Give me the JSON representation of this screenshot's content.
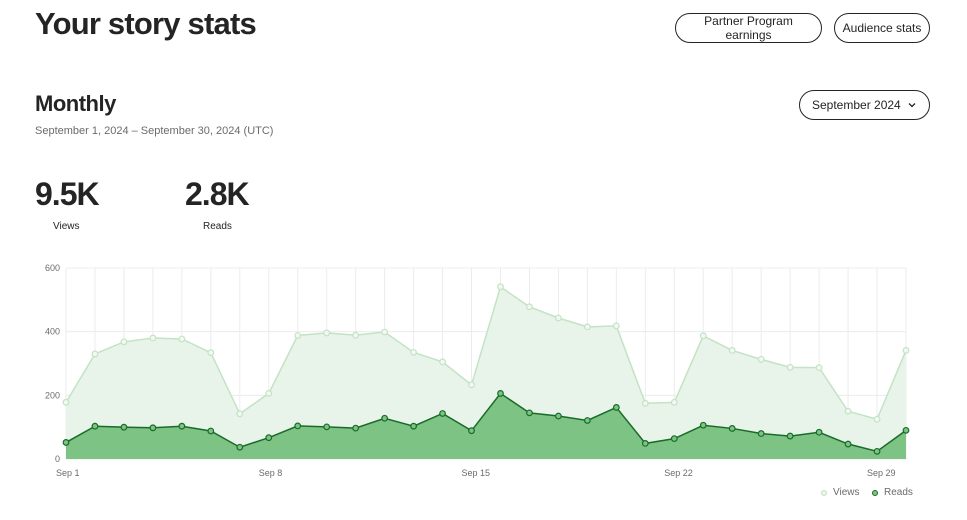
{
  "header": {
    "title": "Your story stats",
    "earnings_label": "Partner Program earnings",
    "audience_label": "Audience stats"
  },
  "summary": {
    "section_title": "Monthly",
    "date_range": "September 1, 2024 – September 30, 2024 (UTC)",
    "month_select": "September 2024",
    "views_value": "9.5K",
    "views_label": "Views",
    "reads_value": "2.8K",
    "reads_label": "Reads"
  },
  "colors": {
    "views_line": "#c3e3c4",
    "views_fill": "#e8f3e9",
    "reads_line": "#1a6b2a",
    "reads_fill": "#7dc383",
    "grid": "#ececec"
  },
  "chart_data": {
    "type": "area",
    "x": [
      "Sep 1",
      "Sep 2",
      "Sep 3",
      "Sep 4",
      "Sep 5",
      "Sep 6",
      "Sep 7",
      "Sep 8",
      "Sep 9",
      "Sep 10",
      "Sep 11",
      "Sep 12",
      "Sep 13",
      "Sep 14",
      "Sep 15",
      "Sep 16",
      "Sep 17",
      "Sep 18",
      "Sep 19",
      "Sep 20",
      "Sep 21",
      "Sep 22",
      "Sep 23",
      "Sep 24",
      "Sep 25",
      "Sep 26",
      "Sep 27",
      "Sep 28",
      "Sep 29",
      "Sep 30"
    ],
    "x_tick_labels": [
      "Sep 1",
      "Sep 8",
      "Sep 15",
      "Sep 22",
      "Sep 29"
    ],
    "y_ticks": [
      0,
      200,
      400,
      600
    ],
    "ylim": [
      0,
      600
    ],
    "grid": true,
    "legend_position": "bottom-right",
    "series": [
      {
        "name": "Views",
        "values": [
          178,
          330,
          368,
          380,
          377,
          334,
          142,
          206,
          388,
          396,
          389,
          399,
          335,
          305,
          233,
          541,
          478,
          443,
          415,
          418,
          175,
          178,
          387,
          341,
          313,
          288,
          287,
          150,
          125,
          341
        ]
      },
      {
        "name": "Reads",
        "values": [
          52,
          103,
          100,
          98,
          103,
          88,
          37,
          67,
          104,
          101,
          97,
          128,
          103,
          143,
          89,
          206,
          145,
          135,
          121,
          162,
          49,
          64,
          106,
          96,
          80,
          72,
          84,
          47,
          24,
          90
        ]
      }
    ]
  }
}
